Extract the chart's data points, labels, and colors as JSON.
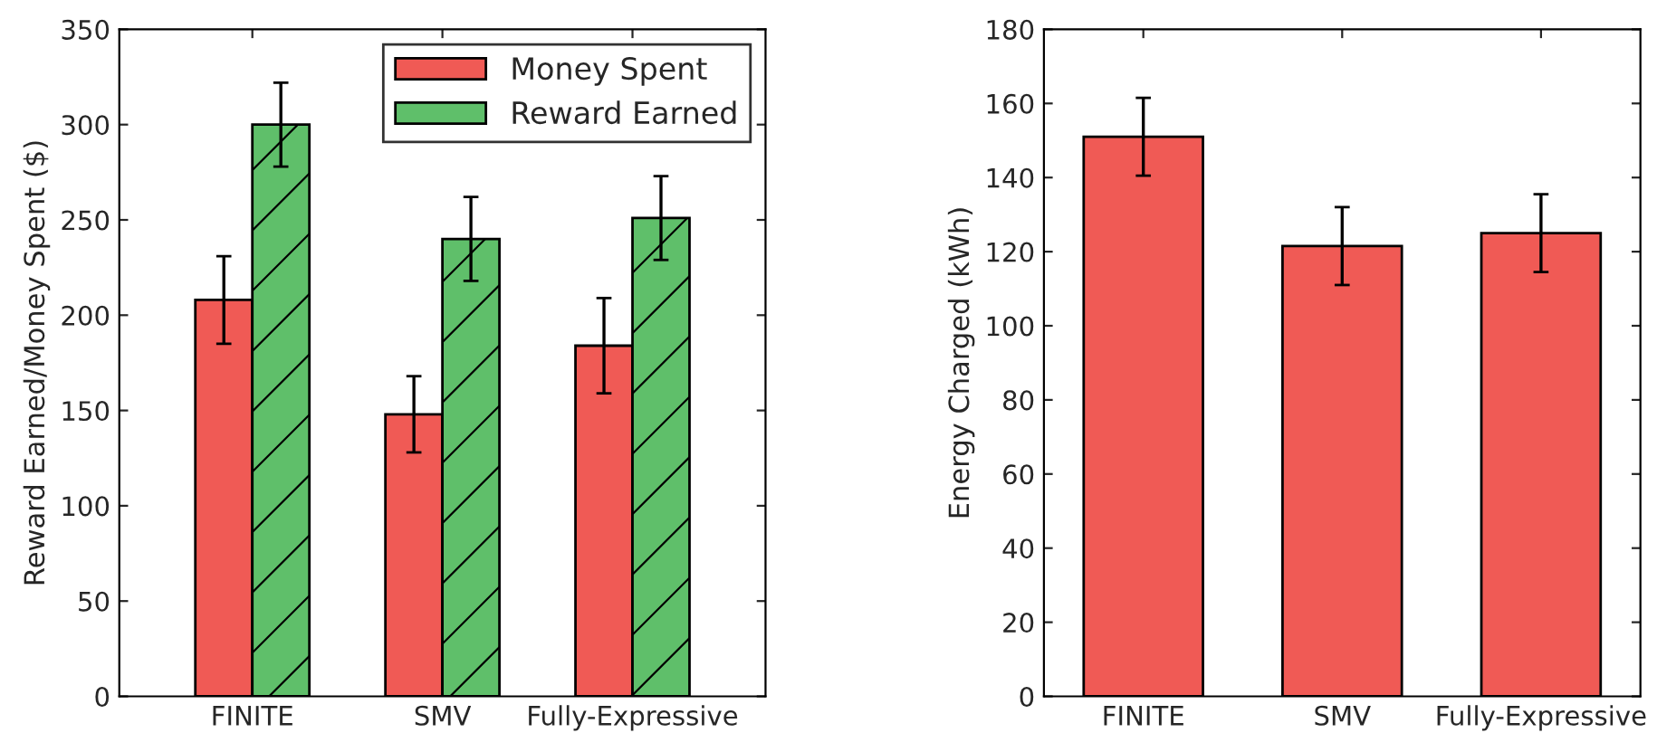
{
  "chart_data": [
    {
      "type": "bar",
      "ylabel": "Reward Earned/Money Spent ($)",
      "categories": [
        "FINITE",
        "SMV",
        "Fully-Expressive"
      ],
      "ylim": [
        0,
        350
      ],
      "yticks": [
        0,
        50,
        100,
        150,
        200,
        250,
        300,
        350
      ],
      "legend": "top right",
      "grid": false,
      "series": [
        {
          "name": "Money Spent",
          "color": "#f05a55",
          "values": [
            208,
            148,
            184
          ],
          "errors": [
            23,
            20,
            25
          ]
        },
        {
          "name": "Reward Earned",
          "color": "#5fbf6a",
          "values": [
            300,
            240,
            251
          ],
          "errors": [
            22,
            22,
            22
          ]
        }
      ]
    },
    {
      "type": "bar",
      "ylabel": "Energy Charged (kWh)",
      "categories": [
        "FINITE",
        "SMV",
        "Fully-Expressive"
      ],
      "ylim": [
        0,
        180
      ],
      "yticks": [
        0,
        20,
        40,
        60,
        80,
        100,
        120,
        140,
        160,
        180
      ],
      "grid": false,
      "series": [
        {
          "color": "#f05a55",
          "values": [
            151,
            121.5,
            125
          ],
          "errors": [
            10.5,
            10.5,
            10.5
          ]
        }
      ]
    }
  ]
}
